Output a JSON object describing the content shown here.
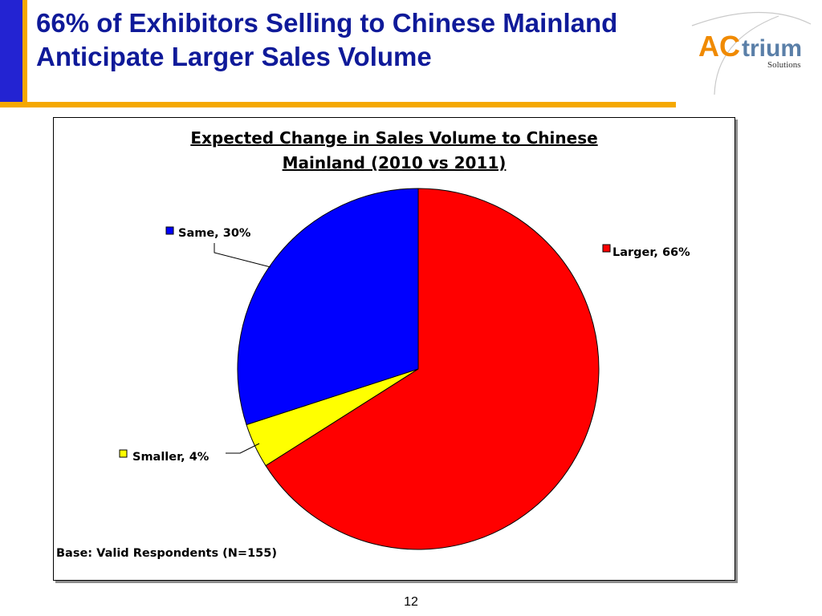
{
  "slide": {
    "title_line1": "66% of Exhibitors Selling to Chinese Mainland",
    "title_line2": "Anticipate Larger Sales Volume",
    "page_number": "12",
    "logo": {
      "text_ac": "AC",
      "text_trium": "trium",
      "text_solutions": "Solutions"
    }
  },
  "colors": {
    "accent_bar": "#2323d2",
    "title_rule": "#f5a800",
    "title_text": "#0f1a99"
  },
  "chart_data": {
    "type": "pie",
    "title_line1": "Expected Change in Sales Volume to Chinese",
    "title_line2": "Mainland (2010 vs 2011)",
    "footnote": "Base: Valid Respondents (N=155)",
    "slices": [
      {
        "name": "Larger",
        "value": 66,
        "label": "Larger, 66%",
        "color": "#ff0000"
      },
      {
        "name": "Smaller",
        "value": 4,
        "label": "Smaller, 4%",
        "color": "#ffff00"
      },
      {
        "name": "Same",
        "value": 30,
        "label": "Same, 30%",
        "color": "#0000ff"
      }
    ]
  }
}
